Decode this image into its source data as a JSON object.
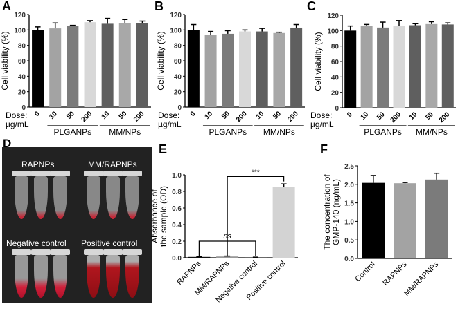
{
  "chart_data": [
    {
      "panel": "A",
      "type": "bar",
      "ylabel": "Cell viability (%)",
      "ylim": [
        0,
        120
      ],
      "yticks": [
        0,
        20,
        40,
        60,
        80,
        100,
        120
      ],
      "dose_label": [
        "Dose:",
        "µg/mL"
      ],
      "categories": [
        "0",
        "10",
        "50",
        "200",
        "10",
        "50",
        "200"
      ],
      "groups": [
        "PLGANPs",
        "MM/NPs"
      ],
      "values": [
        100,
        102,
        105,
        110,
        108,
        108.5,
        108.5
      ],
      "errors": [
        4,
        7,
        1,
        2,
        7,
        5,
        3
      ],
      "colors": [
        "#000000",
        "#a3a3a3",
        "#7b7b7b",
        "#d8d8d8",
        "#5f5f5f",
        "#a8a8a8",
        "#5f5f5f"
      ]
    },
    {
      "panel": "B",
      "type": "bar",
      "ylabel": "Cell viability (%)",
      "ylim": [
        0,
        120
      ],
      "yticks": [
        0,
        20,
        40,
        60,
        80,
        100,
        120
      ],
      "dose_label": [
        "Dose:",
        "µg/mL"
      ],
      "categories": [
        "0",
        "10",
        "50",
        "200",
        "10",
        "50",
        "200"
      ],
      "groups": [
        "PLGANPs",
        "MM/NPs"
      ],
      "values": [
        100,
        94,
        95,
        98,
        98,
        96,
        103
      ],
      "errors": [
        7,
        4,
        4,
        2,
        4,
        1,
        4
      ],
      "colors": [
        "#000000",
        "#a3a3a3",
        "#7b7b7b",
        "#d8d8d8",
        "#5f5f5f",
        "#a8a8a8",
        "#5f5f5f"
      ]
    },
    {
      "panel": "C",
      "type": "bar",
      "ylabel": "Cell viability (%)",
      "ylim": [
        0,
        120
      ],
      "yticks": [
        0,
        20,
        40,
        60,
        80,
        100,
        120
      ],
      "dose_label": [
        "Dose:",
        "µg/mL"
      ],
      "categories": [
        "0",
        "10",
        "50",
        "200",
        "10",
        "50",
        "200"
      ],
      "groups": [
        "PLGANPs",
        "MM/NPs"
      ],
      "values": [
        100,
        106,
        104,
        106,
        107,
        108.5,
        108
      ],
      "errors": [
        6,
        2,
        7,
        7,
        2,
        3,
        2
      ],
      "colors": [
        "#000000",
        "#a3a3a3",
        "#7b7b7b",
        "#d8d8d8",
        "#5f5f5f",
        "#a8a8a8",
        "#5f5f5f"
      ]
    },
    {
      "panel": "E",
      "type": "bar",
      "ylabel": [
        "Absorbance of",
        "the sample (OD)"
      ],
      "ylim": [
        0,
        1.0
      ],
      "yticks": [
        0.0,
        0.2,
        0.4,
        0.6,
        0.8,
        1.0
      ],
      "categories": [
        "RAPNPs",
        "MM/RAPNPs",
        "Negative control",
        "Positive control"
      ],
      "values": [
        0.01,
        0.015,
        0.005,
        0.855
      ],
      "errors": [
        0.003,
        0.005,
        0.002,
        0.035
      ],
      "colors": [
        "#111111",
        "#999999",
        "#333333",
        "#d3d3d3"
      ],
      "annotations": [
        {
          "text": "ns",
          "between": [
            "RAPNPs",
            "Negative control"
          ]
        },
        {
          "text": "***",
          "between": [
            "MM/RAPNPs",
            "Positive control"
          ]
        }
      ]
    },
    {
      "panel": "F",
      "type": "bar",
      "ylabel": [
        "The concentration of",
        "GMP-140 (ng/mL)"
      ],
      "ylim": [
        0,
        2.5
      ],
      "yticks": [
        0.0,
        0.5,
        1.0,
        1.5,
        2.0,
        2.5
      ],
      "categories": [
        "Control",
        "RAPNPs",
        "MM/RAPNPs"
      ],
      "values": [
        2.04,
        2.03,
        2.13
      ],
      "errors": [
        0.2,
        0.02,
        0.17
      ],
      "colors": [
        "#000000",
        "#a3a3a3",
        "#7b7b7b"
      ]
    }
  ],
  "photo": {
    "panel": "D",
    "labels": [
      "RAPNPs",
      "MM/RAPNPs",
      "Negative control",
      "Positive control"
    ]
  }
}
